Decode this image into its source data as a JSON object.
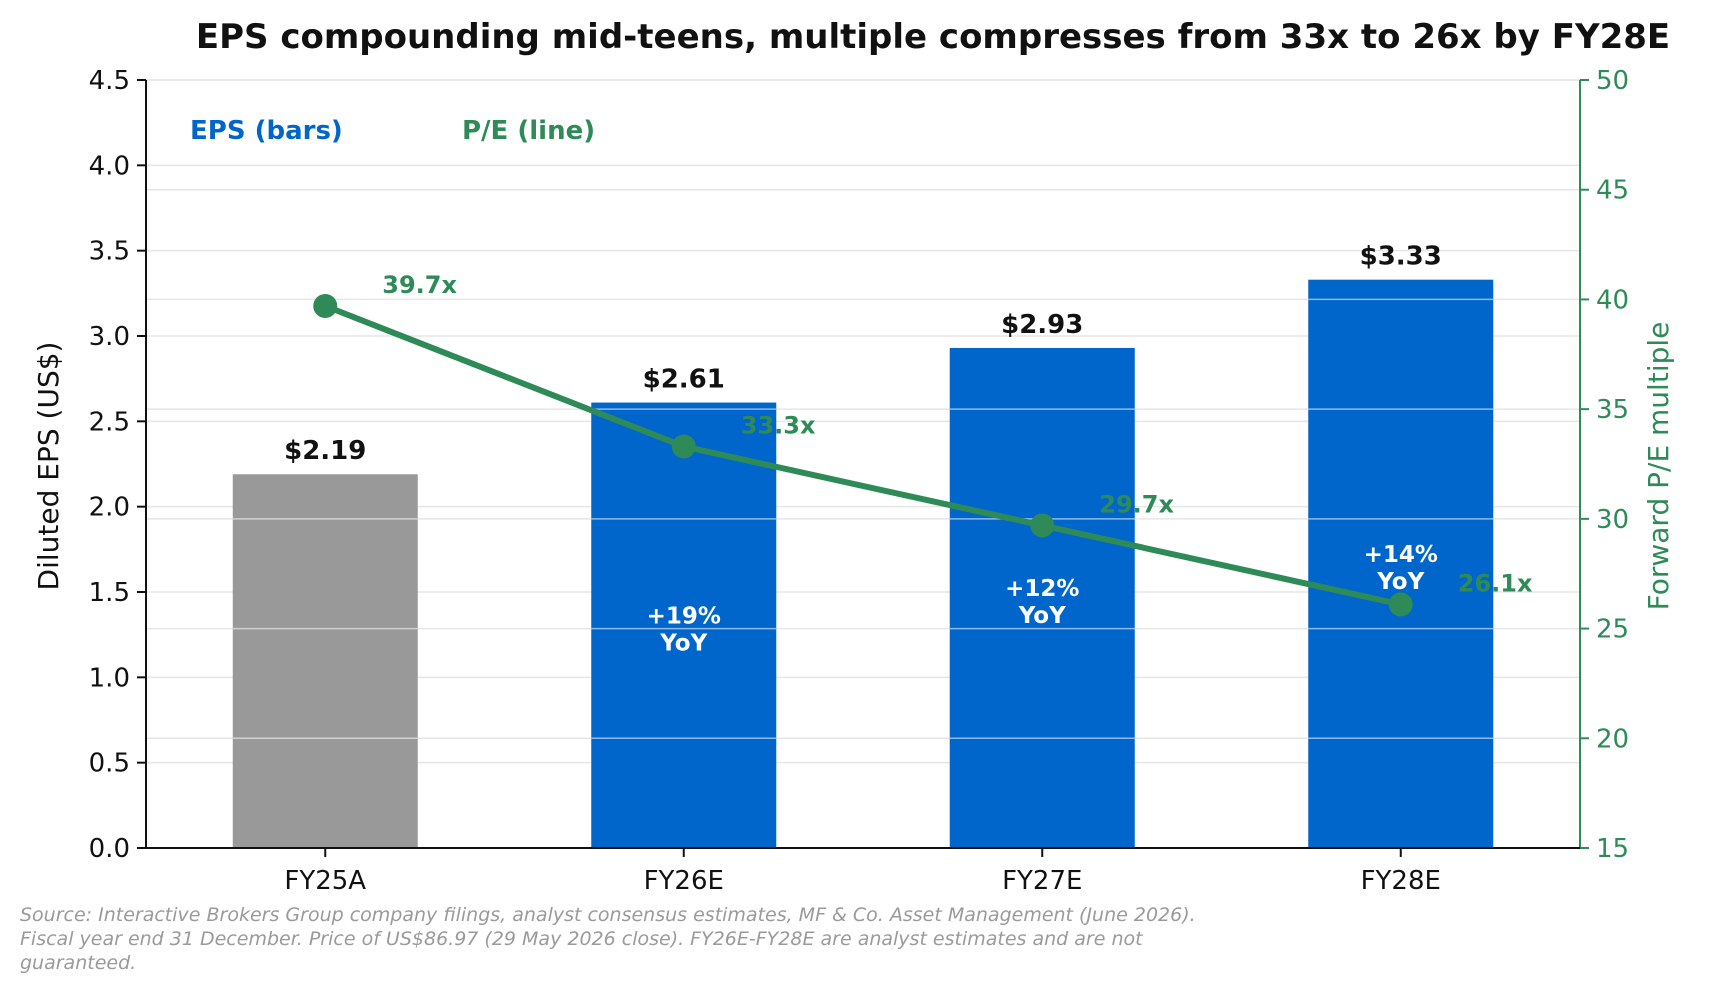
{
  "colors": {
    "eps_actual": "#999999",
    "eps_estimate": "#0066cc",
    "pe_line": "#2e8b57",
    "text": "#111111",
    "grid": "#e6e6e6",
    "source": "#9a9a9a"
  },
  "chart_data": {
    "type": "bar",
    "title": "EPS compounding mid-teens, multiple compresses from 33x to 26x by FY28E",
    "categories": [
      "FY25A",
      "FY26E",
      "FY27E",
      "FY28E"
    ],
    "ylabel": "Diluted EPS (US$)",
    "y2label": "Forward P/E multiple",
    "ylim": [
      0,
      4.5
    ],
    "y2lim": [
      15,
      50
    ],
    "yticks": [
      "0.0",
      "0.5",
      "1.0",
      "1.5",
      "2.0",
      "2.5",
      "3.0",
      "3.5",
      "4.0",
      "4.5"
    ],
    "y2ticks": [
      "15",
      "20",
      "25",
      "30",
      "35",
      "40",
      "45",
      "50"
    ],
    "grid": true,
    "series": [
      {
        "name": "EPS (bars)",
        "type": "bar",
        "axis": "left",
        "values": [
          2.19,
          2.61,
          2.93,
          3.33
        ],
        "labels": [
          "$2.19",
          "$2.61",
          "$2.93",
          "$3.33"
        ],
        "bar_colors": [
          "#999999",
          "#0066cc",
          "#0066cc",
          "#0066cc"
        ]
      },
      {
        "name": "P/E (line)",
        "type": "line",
        "axis": "right",
        "values": [
          39.7,
          33.3,
          29.7,
          26.1
        ],
        "labels": [
          "39.7x",
          "33.3x",
          "29.7x",
          "26.1x"
        ]
      }
    ],
    "yoy_annotations": [
      {
        "category": "FY26E",
        "lines": [
          "+19%",
          "YoY"
        ]
      },
      {
        "category": "FY27E",
        "lines": [
          "+12%",
          "YoY"
        ]
      },
      {
        "category": "FY28E",
        "lines": [
          "+14%",
          "YoY"
        ]
      }
    ],
    "legend": {
      "placement": "top-left",
      "items": [
        "EPS (bars)",
        "P/E (line)"
      ]
    }
  },
  "source_note": "Source: Interactive Brokers Group company filings, analyst consensus estimates, MF & Co. Asset Management (June 2026). Fiscal year end 31 December. Price of US$86.97 (29 May 2026 close). FY26E-FY28E are analyst estimates and are not guaranteed."
}
